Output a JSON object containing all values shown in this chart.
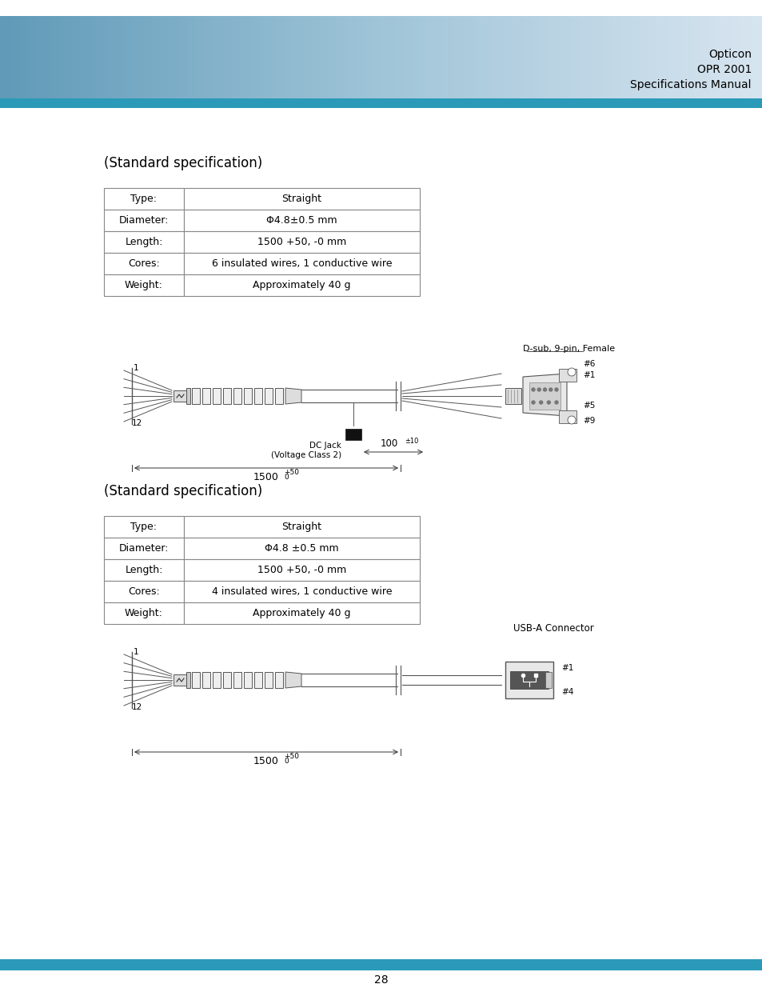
{
  "header_text": [
    "Opticon",
    "OPR 2001",
    "Specifications Manual"
  ],
  "header_bg_color": "#a8d4e6",
  "header_bar_color": "#2a9ab8",
  "page_number": "28",
  "table1_title": "(Standard specification)",
  "table1_rows": [
    [
      "Type:",
      "Straight"
    ],
    [
      "Diameter:",
      "Φ4.8±0.5 mm"
    ],
    [
      "Length:",
      "1500 +50, -0 mm"
    ],
    [
      "Cores:",
      "6 insulated wires, 1 conductive wire"
    ],
    [
      "Weight:",
      "Approximately 40 g"
    ]
  ],
  "table2_title": "(Standard specification)",
  "table2_rows": [
    [
      "Type:",
      "Straight"
    ],
    [
      "Diameter:",
      "Φ4.8 ±0.5 mm"
    ],
    [
      "Length:",
      "1500 +50, -0 mm"
    ],
    [
      "Cores:",
      "4 insulated wires, 1 conductive wire"
    ],
    [
      "Weight:",
      "Approximately 40 g"
    ]
  ],
  "diag1_connector_label": "D-sub, 9-pin, Female",
  "diag1_dcjack_label": "DC Jack\n(Voltage Class 2)",
  "diag1_dim1": "100",
  "diag1_dim1_tol": "±10",
  "diag1_dim2": "1500",
  "diag1_dim2_tol_sup": "+50",
  "diag1_dim2_tol_sub": "0",
  "diag1_pins": [
    "#1",
    "#5",
    "#6",
    "#9"
  ],
  "diag2_connector_label": "USB-A Connector",
  "diag2_dim": "1500",
  "diag2_dim_tol_sup": "+50",
  "diag2_dim_tol_sub": "0",
  "diag2_pins": [
    "#1",
    "#4"
  ],
  "bg_color": "#ffffff",
  "text_color": "#000000",
  "table_border_color": "#888888",
  "footer_bar_color": "#2a9ab8"
}
